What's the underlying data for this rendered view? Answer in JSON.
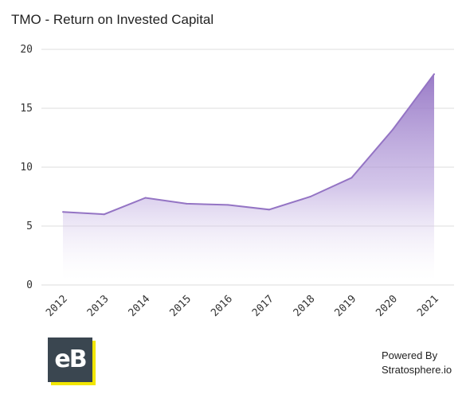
{
  "chart_data": {
    "type": "area",
    "title": "TMO - Return on Invested Capital",
    "categories": [
      "2012",
      "2013",
      "2014",
      "2015",
      "2016",
      "2017",
      "2018",
      "2019",
      "2020",
      "2021"
    ],
    "series": [
      {
        "values": [
          6.2,
          6.0,
          7.4,
          6.9,
          6.8,
          6.4,
          7.5,
          9.1,
          13.2,
          17.9
        ]
      }
    ],
    "ylim": [
      0,
      20
    ],
    "yticks": [
      "0",
      "5",
      "10",
      "15",
      "20"
    ],
    "grid": true,
    "xlabel": "",
    "ylabel": ""
  },
  "colors": {
    "line": "#9474c4",
    "fill": "#9474c4",
    "grid": "#dcdcdc"
  },
  "logo": {
    "text": "eB"
  },
  "footer": {
    "powered_by": "Powered By",
    "source": "Stratosphere.io"
  }
}
